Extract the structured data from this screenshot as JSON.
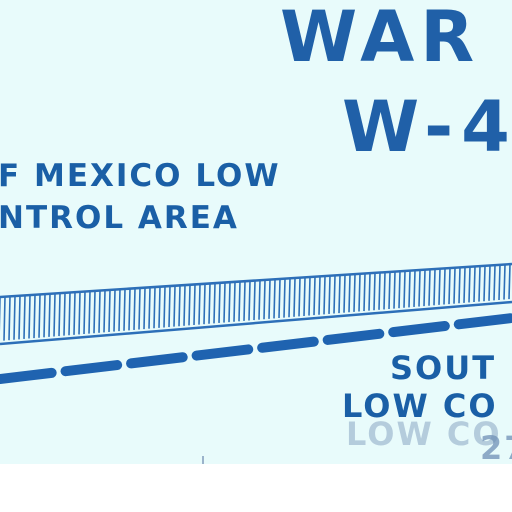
{
  "warning_area": {
    "line1": "WAR",
    "line2": "W-4"
  },
  "gulf_area": {
    "line1": "F MEXICO LOW",
    "line2": "NTROL AREA"
  },
  "south_area": {
    "line1": "SOUT",
    "line2": "LOW CO",
    "line2_faded": "LOW CO",
    "line3": "27"
  },
  "colors": {
    "label_blue": "#1a5fa6",
    "boundary_blue": "#2d6fb8",
    "water": "#e8fbfb"
  }
}
